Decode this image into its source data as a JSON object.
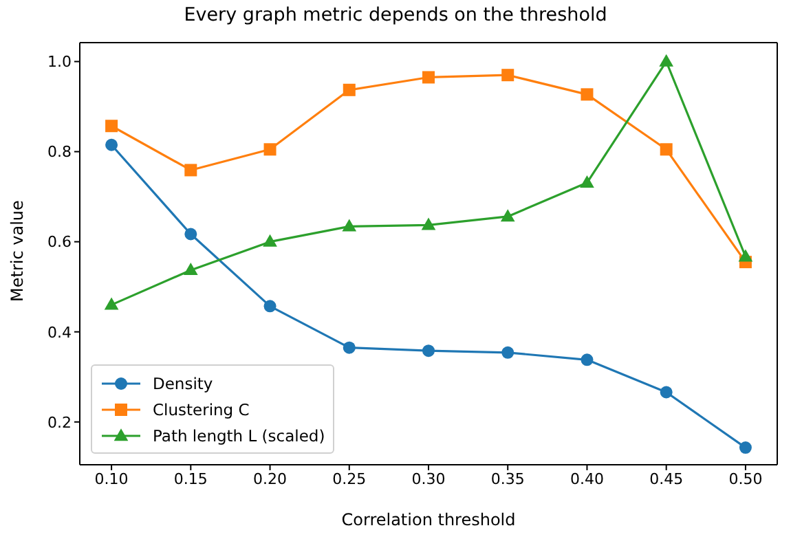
{
  "chart_data": {
    "type": "line",
    "title": "Every graph metric depends on the threshold",
    "xlabel": "Correlation threshold",
    "ylabel": "Metric value",
    "x": [
      0.1,
      0.15,
      0.2,
      0.25,
      0.3,
      0.35,
      0.4,
      0.45,
      0.5
    ],
    "series": [
      {
        "name": "Density",
        "color": "#1f77b4",
        "marker": "circle",
        "values": [
          0.815,
          0.617,
          0.457,
          0.365,
          0.358,
          0.354,
          0.338,
          0.266,
          0.143
        ]
      },
      {
        "name": "Clustering C",
        "color": "#ff7f0e",
        "marker": "square",
        "values": [
          0.857,
          0.759,
          0.805,
          0.937,
          0.965,
          0.97,
          0.927,
          0.805,
          0.555
        ]
      },
      {
        "name": "Path length L (scaled)",
        "color": "#2ca02c",
        "marker": "triangle",
        "values": [
          0.46,
          0.537,
          0.6,
          0.634,
          0.637,
          0.656,
          0.731,
          1.0,
          0.567
        ]
      }
    ],
    "xlim": [
      0.08,
      0.52
    ],
    "xticks": [
      {
        "value": 0.1,
        "label": "0.10"
      },
      {
        "value": 0.15,
        "label": "0.15"
      },
      {
        "value": 0.2,
        "label": "0.20"
      },
      {
        "value": 0.25,
        "label": "0.25"
      },
      {
        "value": 0.3,
        "label": "0.30"
      },
      {
        "value": 0.35,
        "label": "0.35"
      },
      {
        "value": 0.4,
        "label": "0.40"
      },
      {
        "value": 0.45,
        "label": "0.45"
      },
      {
        "value": 0.5,
        "label": "0.50"
      }
    ],
    "ylim": [
      0.105,
      1.042
    ],
    "yticks": [
      0.2,
      0.4,
      0.6,
      0.8,
      {
        "value": 1.0,
        "label": "1.0"
      }
    ],
    "grid": false,
    "legend": "bottom left",
    "line_style": "solid"
  }
}
